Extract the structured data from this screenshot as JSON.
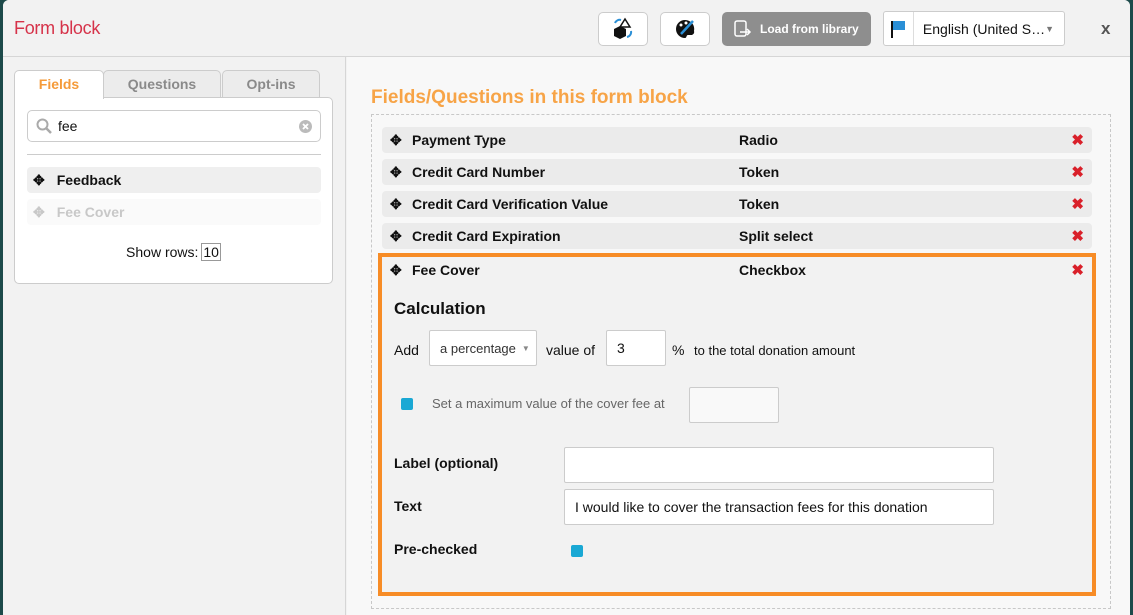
{
  "header": {
    "title": "Form block",
    "load_library": "Load from library",
    "language": "English (United S…",
    "close": "x"
  },
  "left": {
    "tabs": [
      {
        "label": "Fields"
      },
      {
        "label": "Questions"
      },
      {
        "label": "Opt-ins"
      }
    ],
    "search_value": "fee",
    "items": [
      {
        "label": "Feedback"
      },
      {
        "label": "Fee Cover"
      }
    ],
    "show_rows_label": "Show rows:",
    "show_rows_value": "10"
  },
  "right": {
    "title": "Fields/Questions in this form block",
    "rows": [
      {
        "name": "Payment Type",
        "type": "Radio"
      },
      {
        "name": "Credit Card Number",
        "type": "Token"
      },
      {
        "name": "Credit Card Verification Value",
        "type": "Token"
      },
      {
        "name": "Credit Card Expiration",
        "type": "Split select"
      },
      {
        "name": "Fee Cover",
        "type": "Checkbox"
      }
    ],
    "fee_cover": {
      "calc_title": "Calculation",
      "add": "Add",
      "mode": "a percentage",
      "value_of": "value of",
      "value": "3",
      "percent": "%",
      "suffix": "to the total donation amount",
      "max_label": "Set a maximum value of the cover fee at",
      "max_value": "",
      "label_label": "Label (optional)",
      "label_value": "",
      "text_label": "Text",
      "text_value": "I would like to cover the transaction fees for this donation",
      "prechecked_label": "Pre-checked"
    }
  },
  "colors": {
    "accent": "#f7a447",
    "selected_border": "#f78c26",
    "title": "#d6334a",
    "delete": "#d9202a",
    "checkbox": "#1aa8d4"
  }
}
